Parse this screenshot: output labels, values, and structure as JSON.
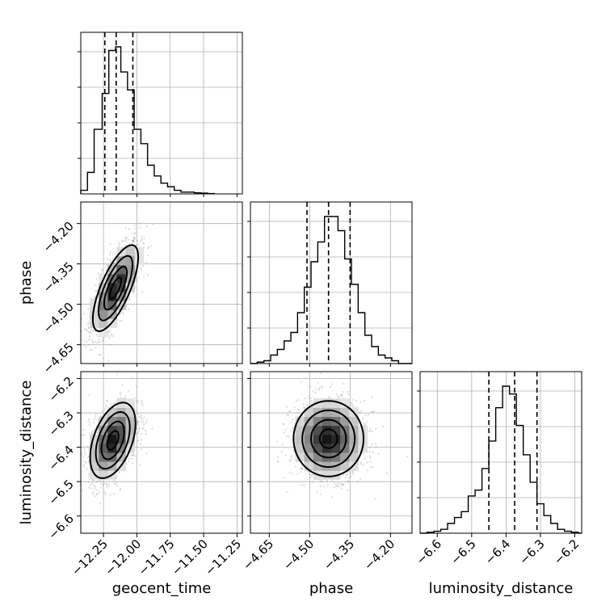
{
  "chart_data": {
    "type": "corner",
    "parameters": [
      "geocent_time",
      "phase",
      "luminosity_distance"
    ],
    "axes": {
      "geocent_time": {
        "label": "geocent_time",
        "range": [
          -12.42,
          -11.21
        ],
        "ticks": [
          -12.25,
          -12.0,
          -11.75,
          -11.5,
          -11.25
        ],
        "tick_labels": [
          "−12.25",
          "−12.00",
          "−11.75",
          "−11.50",
          "−11.25"
        ]
      },
      "phase": {
        "label": "phase",
        "range": [
          -4.72,
          -4.12
        ],
        "ticks": [
          -4.65,
          -4.5,
          -4.35,
          -4.2
        ],
        "tick_labels": [
          "−4.65",
          "−4.50",
          "−4.35",
          "−4.20"
        ]
      },
      "luminosity_distance": {
        "label": "luminosity_distance",
        "range": [
          -6.65,
          -6.18
        ],
        "ticks": [
          -6.6,
          -6.5,
          -6.4,
          -6.3,
          -6.2
        ],
        "tick_labels": [
          "−6.6",
          "−6.5",
          "−6.4",
          "−6.3",
          "−6.2"
        ]
      }
    },
    "histograms": {
      "geocent_time": {
        "bin_edges": [
          -12.42,
          -12.37,
          -12.32,
          -12.26,
          -12.21,
          -12.16,
          -12.12,
          -12.07,
          -12.02,
          -11.97,
          -11.92,
          -11.87,
          -11.82,
          -11.77,
          -11.72,
          -11.67,
          -11.62,
          -11.57,
          -11.52,
          -11.47,
          -11.42
        ],
        "counts": [
          1,
          6,
          18,
          28,
          40,
          41,
          34,
          29,
          18,
          14,
          8,
          5,
          3,
          2,
          1,
          0.5,
          0.5,
          0.3,
          0.2,
          0.1
        ],
        "quantiles": [
          -12.24,
          -12.155,
          -12.03
        ]
      },
      "phase": {
        "bin_edges": [
          -4.72,
          -4.695,
          -4.67,
          -4.645,
          -4.62,
          -4.595,
          -4.57,
          -4.545,
          -4.52,
          -4.495,
          -4.47,
          -4.445,
          -4.42,
          -4.395,
          -4.37,
          -4.345,
          -4.32,
          -4.295,
          -4.27,
          -4.245,
          -4.22,
          -4.195,
          -4.17,
          -4.145,
          -4.12
        ],
        "counts": [
          0,
          0.5,
          1,
          3,
          5,
          8,
          11,
          18,
          27,
          36,
          43,
          52,
          52,
          47,
          37,
          28,
          18,
          10,
          6,
          3,
          2,
          1,
          0,
          0
        ],
        "quantiles": [
          -4.51,
          -4.43,
          -4.35
        ]
      },
      "luminosity_distance": {
        "bin_edges": [
          -6.65,
          -6.63,
          -6.61,
          -6.59,
          -6.57,
          -6.55,
          -6.53,
          -6.51,
          -6.49,
          -6.47,
          -6.45,
          -6.43,
          -6.41,
          -6.39,
          -6.37,
          -6.35,
          -6.33,
          -6.31,
          -6.29,
          -6.27,
          -6.25,
          -6.23,
          -6.21,
          -6.19,
          -6.18
        ],
        "counts": [
          0,
          0.5,
          1,
          2,
          5,
          8,
          11,
          19,
          22,
          33,
          47,
          64,
          75,
          71,
          55,
          40,
          26,
          15,
          9,
          5,
          2,
          1,
          0.5,
          0
        ],
        "quantiles": [
          -6.45,
          -6.375,
          -6.31
        ]
      }
    },
    "pairs": [
      {
        "x": "geocent_time",
        "y": "phase",
        "mean": [
          -12.16,
          -4.44
        ],
        "std": [
          0.085,
          0.08
        ],
        "correlation": 0.72,
        "contour_levels_sigma": [
          0.5,
          1.0,
          1.5,
          2.0
        ]
      },
      {
        "x": "geocent_time",
        "y": "luminosity_distance",
        "mean": [
          -12.18,
          -6.38
        ],
        "std": [
          0.085,
          0.055
        ],
        "correlation": 0.45,
        "contour_levels_sigma": [
          0.5,
          1.0,
          1.5,
          2.0
        ]
      },
      {
        "x": "phase",
        "y": "luminosity_distance",
        "mean": [
          -4.43,
          -6.375
        ],
        "std": [
          0.065,
          0.055
        ],
        "correlation": 0.0,
        "contour_levels_sigma": [
          0.5,
          1.0,
          1.5,
          2.0
        ]
      }
    ],
    "grid": true
  }
}
